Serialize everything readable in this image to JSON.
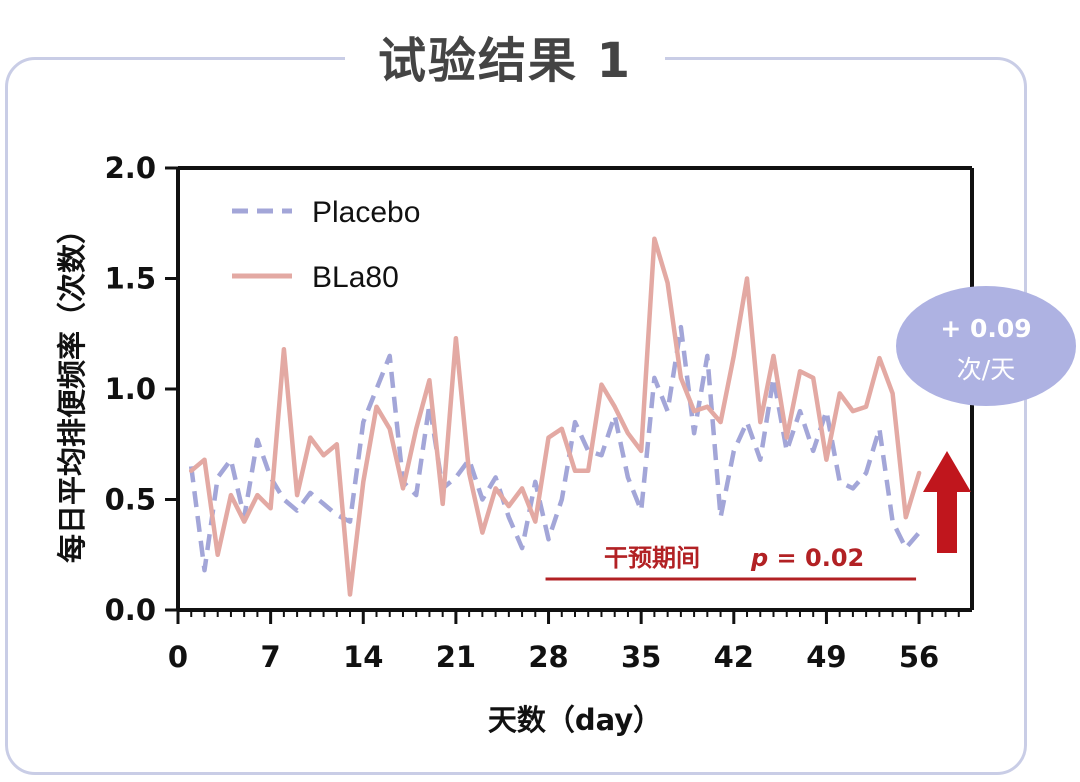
{
  "title": "试验结果 1",
  "chart_data": {
    "type": "line",
    "ylabel": "每日平均排便频率（次数）",
    "xlabel": "天数（day）",
    "xlim": [
      0,
      60
    ],
    "ylim": [
      0,
      2.0
    ],
    "x_ticks": [
      0,
      7,
      14,
      21,
      28,
      35,
      42,
      49,
      56
    ],
    "y_ticks": [
      "0.0",
      "0.5",
      "1.0",
      "1.5",
      "2.0"
    ],
    "grid": false,
    "legend_position": "top-left",
    "series": [
      {
        "name": "Placebo",
        "color": "#a3a6d8",
        "dash": true,
        "x": [
          1,
          2,
          3,
          4,
          5,
          6,
          7,
          8,
          9,
          10,
          11,
          12,
          13,
          14,
          15,
          16,
          17,
          18,
          19,
          20,
          21,
          22,
          23,
          24,
          25,
          26,
          27,
          28,
          29,
          30,
          31,
          32,
          33,
          34,
          35,
          36,
          37,
          38,
          39,
          40,
          41,
          42,
          43,
          44,
          45,
          46,
          47,
          48,
          49,
          50,
          51,
          52,
          53,
          54,
          55,
          56
        ],
        "values": [
          0.65,
          0.18,
          0.6,
          0.68,
          0.42,
          0.77,
          0.6,
          0.5,
          0.45,
          0.53,
          0.48,
          0.43,
          0.4,
          0.85,
          1.0,
          1.15,
          0.58,
          0.52,
          0.93,
          0.55,
          0.6,
          0.68,
          0.5,
          0.6,
          0.42,
          0.28,
          0.58,
          0.32,
          0.5,
          0.85,
          0.72,
          0.7,
          0.88,
          0.6,
          0.45,
          1.05,
          0.9,
          1.28,
          0.8,
          1.15,
          0.42,
          0.72,
          0.85,
          0.68,
          1.05,
          0.72,
          0.9,
          0.72,
          0.9,
          0.58,
          0.55,
          0.62,
          0.82,
          0.4,
          0.28,
          0.35
        ]
      },
      {
        "name": "BLa80",
        "color": "#e3a9a3",
        "dash": false,
        "x": [
          1,
          2,
          3,
          4,
          5,
          6,
          7,
          8,
          9,
          10,
          11,
          12,
          13,
          14,
          15,
          16,
          17,
          18,
          19,
          20,
          21,
          22,
          23,
          24,
          25,
          26,
          27,
          28,
          29,
          30,
          31,
          32,
          33,
          34,
          35,
          36,
          37,
          38,
          39,
          40,
          41,
          42,
          43,
          44,
          45,
          46,
          47,
          48,
          49,
          50,
          51,
          52,
          53,
          54,
          55,
          56
        ],
        "values": [
          0.63,
          0.68,
          0.25,
          0.52,
          0.4,
          0.52,
          0.46,
          1.18,
          0.52,
          0.78,
          0.7,
          0.75,
          0.07,
          0.58,
          0.92,
          0.82,
          0.55,
          0.82,
          1.04,
          0.48,
          1.23,
          0.62,
          0.35,
          0.55,
          0.47,
          0.55,
          0.4,
          0.78,
          0.82,
          0.63,
          0.63,
          1.02,
          0.92,
          0.8,
          0.72,
          1.68,
          1.48,
          1.05,
          0.9,
          0.92,
          0.85,
          1.15,
          1.5,
          0.85,
          1.15,
          0.78,
          1.08,
          1.05,
          0.68,
          0.98,
          0.9,
          0.92,
          1.14,
          0.98,
          0.42,
          0.62
        ]
      }
    ],
    "annotations": {
      "intervention_label": "干预期间",
      "p_label": "p",
      "p_value": " = 0.02",
      "intervention_x_range": [
        28,
        56
      ],
      "badge_line1": "+ 0.09",
      "badge_line2": "次/天"
    },
    "annotation_colors": {
      "bar": "#b22124",
      "arrow": "#c0161d",
      "badge": "#aeb2e2"
    }
  }
}
